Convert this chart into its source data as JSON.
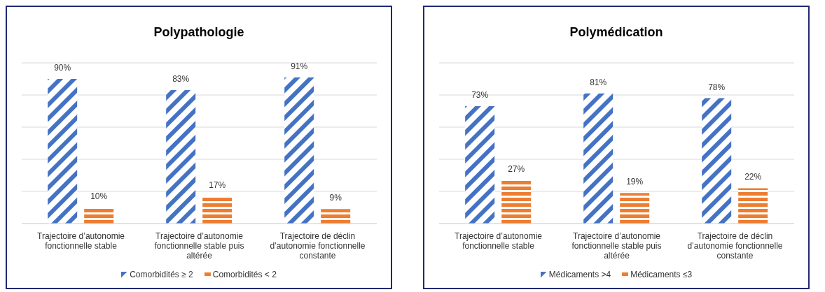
{
  "chart_data": [
    {
      "type": "bar",
      "title": "Polypathologie",
      "categories": [
        "Trajectoire d’autonomie fonctionnelle stable",
        "Trajectoire d’autonomie fonctionnelle stable puis altérée",
        "Trajectoire de déclin d’autonomie fonctionnelle constante"
      ],
      "series": [
        {
          "name": "Comorbidités ≥ 2",
          "color": "#4472c4",
          "values": [
            90,
            83,
            91
          ],
          "value_labels": [
            "90%",
            "83%",
            "91%"
          ]
        },
        {
          "name": "Comorbidités < 2",
          "color": "#ed7d31",
          "values": [
            10,
            17,
            9
          ],
          "value_labels": [
            "10%",
            "17%",
            "9%"
          ]
        }
      ],
      "ylim": [
        0,
        100
      ],
      "grid": "y",
      "tick_labels": "x",
      "legend": "bottom"
    },
    {
      "type": "bar",
      "title": "Polymédication",
      "categories": [
        "Trajectoire d’autonomie fonctionnelle stable",
        "Trajectoire d’autonomie fonctionnelle stable puis altérée",
        "Trajectoire de déclin d’autonomie fonctionnelle constante"
      ],
      "series": [
        {
          "name": "Médicaments >4",
          "color": "#4472c4",
          "values": [
            73,
            81,
            78
          ],
          "value_labels": [
            "73%",
            "81%",
            "78%"
          ]
        },
        {
          "name": "Médicaments ≤3",
          "color": "#ed7d31",
          "values": [
            27,
            19,
            22
          ],
          "value_labels": [
            "27%",
            "19%",
            "22%"
          ]
        }
      ],
      "ylim": [
        0,
        100
      ],
      "grid": "y",
      "tick_labels": "x",
      "legend": "bottom"
    }
  ]
}
